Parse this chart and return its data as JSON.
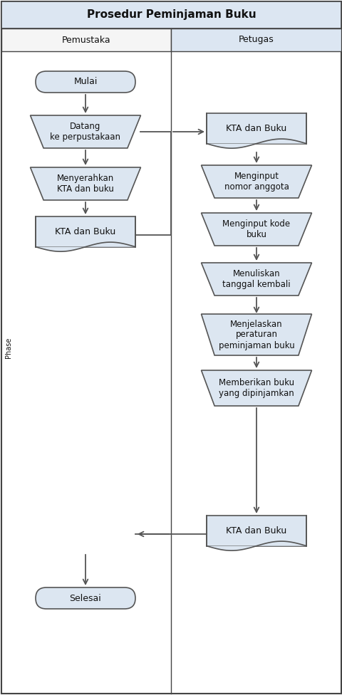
{
  "title": "Prosedur Peminjaman Buku",
  "col1_header": "Pemustaka",
  "col2_header": "Petugas",
  "box_fill_light": "#dce6f1",
  "box_fill_white": "#ffffff",
  "box_edge": "#555555",
  "white_fill": "#ffffff",
  "arrow_color": "#555555",
  "text_color": "#111111",
  "title_bg": "#e8eef8",
  "right_col_bg": "#e8eef8",
  "left_col_bg": "#f8f8f8",
  "fig_width": 4.81,
  "fig_height": 9.76
}
